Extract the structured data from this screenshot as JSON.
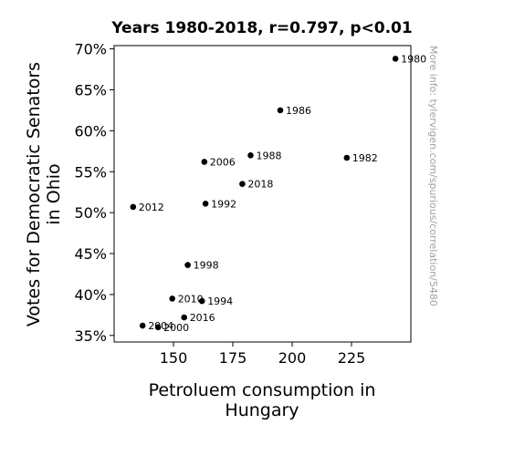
{
  "chart_data": {
    "type": "scatter",
    "title": "Years 1980-2018, r=0.797, p<0.01",
    "xlabel": [
      "Petroluem consumption in",
      "Hungary"
    ],
    "ylabel": [
      "Votes for Democratic Senators",
      "in Ohio"
    ],
    "xlim": [
      125,
      250
    ],
    "ylim": [
      34.2,
      70.4
    ],
    "xticks": [
      150,
      175,
      200,
      225
    ],
    "xtick_labels": [
      "150",
      "175",
      "200",
      "225"
    ],
    "yticks": [
      35,
      40,
      45,
      50,
      55,
      60,
      65,
      70
    ],
    "ytick_labels": [
      "35%",
      "40%",
      "45%",
      "50%",
      "55%",
      "60%",
      "65%",
      "70%"
    ],
    "points": [
      {
        "label": "1980",
        "x": 243.5,
        "y": 68.8
      },
      {
        "label": "1982",
        "x": 223.0,
        "y": 56.7
      },
      {
        "label": "1986",
        "x": 195.0,
        "y": 62.5
      },
      {
        "label": "1988",
        "x": 182.5,
        "y": 57.0
      },
      {
        "label": "1992",
        "x": 163.5,
        "y": 51.1
      },
      {
        "label": "1994",
        "x": 162.0,
        "y": 39.2
      },
      {
        "label": "1998",
        "x": 156.0,
        "y": 43.6
      },
      {
        "label": "2000",
        "x": 143.5,
        "y": 36.0
      },
      {
        "label": "2004",
        "x": 137.0,
        "y": 36.2
      },
      {
        "label": "2006",
        "x": 163.0,
        "y": 56.2
      },
      {
        "label": "2010",
        "x": 149.5,
        "y": 39.5
      },
      {
        "label": "2012",
        "x": 133.0,
        "y": 50.7
      },
      {
        "label": "2016",
        "x": 154.5,
        "y": 37.2
      },
      {
        "label": "2018",
        "x": 179.0,
        "y": 53.5
      }
    ],
    "grid": false,
    "point_color": "#000000"
  },
  "watermark": "More info: tylervigen.com/spurious/correlation/5480"
}
